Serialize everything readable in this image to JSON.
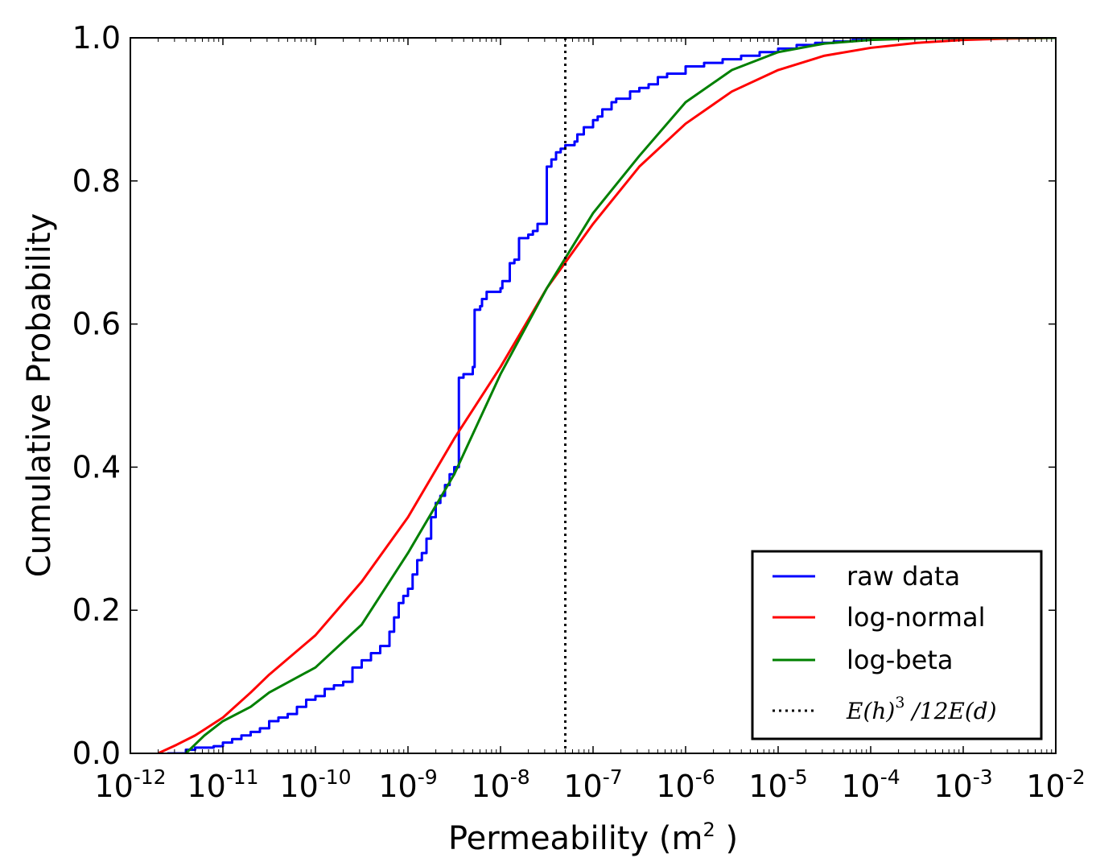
{
  "chart_data": {
    "type": "line",
    "title": "",
    "xlabel": "Permeability (m",
    "xlabel_sup": "2",
    "xlabel_close": " )",
    "ylabel": "Cumulative Probability",
    "xscale": "log",
    "xlim_exp": [
      -12,
      -2
    ],
    "ylim": [
      0.0,
      1.0
    ],
    "x_tick_labels": [
      {
        "base": "10",
        "exp": "-12"
      },
      {
        "base": "10",
        "exp": "-11"
      },
      {
        "base": "10",
        "exp": "-10"
      },
      {
        "base": "10",
        "exp": "-9"
      },
      {
        "base": "10",
        "exp": "-8"
      },
      {
        "base": "10",
        "exp": "-7"
      },
      {
        "base": "10",
        "exp": "-6"
      },
      {
        "base": "10",
        "exp": "-5"
      },
      {
        "base": "10",
        "exp": "-4"
      },
      {
        "base": "10",
        "exp": "-3"
      },
      {
        "base": "10",
        "exp": "-2"
      }
    ],
    "y_ticks": [
      0.0,
      0.2,
      0.4,
      0.6,
      0.8,
      1.0
    ],
    "y_tick_labels": [
      "0.0",
      "0.2",
      "0.4",
      "0.6",
      "0.8",
      "1.0"
    ],
    "legend_position": "lower-right",
    "series": [
      {
        "name": "raw data",
        "color": "#0000ff",
        "style": "step",
        "log10_x": [
          -11.6,
          -11.4,
          -11.3,
          -11.1,
          -11.0,
          -10.9,
          -10.8,
          -10.7,
          -10.6,
          -10.5,
          -10.4,
          -10.3,
          -10.2,
          -10.1,
          -10.0,
          -9.9,
          -9.8,
          -9.7,
          -9.6,
          -9.5,
          -9.4,
          -9.3,
          -9.2,
          -9.15,
          -9.1,
          -9.05,
          -9.0,
          -8.95,
          -8.9,
          -8.85,
          -8.8,
          -8.75,
          -8.7,
          -8.65,
          -8.6,
          -8.55,
          -8.5,
          -8.45,
          -8.4,
          -8.3,
          -8.28,
          -8.22,
          -8.2,
          -8.15,
          -8.0,
          -7.98,
          -7.9,
          -7.85,
          -7.8,
          -7.7,
          -7.65,
          -7.6,
          -7.5,
          -7.45,
          -7.4,
          -7.35,
          -7.3,
          -7.2,
          -7.17,
          -7.1,
          -7.0,
          -6.95,
          -6.9,
          -6.8,
          -6.75,
          -6.6,
          -6.5,
          -6.4,
          -6.3,
          -6.2,
          -6.0,
          -5.8,
          -5.6,
          -5.4,
          -5.2,
          -5.0,
          -4.8,
          -4.6,
          -4.4,
          -4.2,
          -4.0,
          -3.8,
          -3.5,
          -3.0,
          -2.5,
          -2.0
        ],
        "cdf": [
          0.0,
          0.005,
          0.008,
          0.01,
          0.015,
          0.02,
          0.025,
          0.03,
          0.035,
          0.045,
          0.05,
          0.055,
          0.065,
          0.075,
          0.08,
          0.09,
          0.095,
          0.1,
          0.12,
          0.13,
          0.14,
          0.15,
          0.17,
          0.19,
          0.21,
          0.22,
          0.23,
          0.25,
          0.27,
          0.28,
          0.3,
          0.33,
          0.35,
          0.36,
          0.375,
          0.39,
          0.4,
          0.525,
          0.53,
          0.54,
          0.62,
          0.625,
          0.635,
          0.645,
          0.65,
          0.66,
          0.685,
          0.69,
          0.72,
          0.725,
          0.73,
          0.74,
          0.82,
          0.83,
          0.84,
          0.845,
          0.85,
          0.855,
          0.865,
          0.875,
          0.885,
          0.89,
          0.9,
          0.91,
          0.915,
          0.925,
          0.93,
          0.935,
          0.945,
          0.95,
          0.96,
          0.965,
          0.97,
          0.975,
          0.98,
          0.985,
          0.99,
          0.993,
          0.995,
          0.997,
          0.998,
          0.999,
          0.9995,
          1.0,
          1.0,
          1.0
        ]
      },
      {
        "name": "log-normal",
        "color": "#ff0000",
        "style": "line",
        "log10_x": [
          -11.7,
          -11.5,
          -11.3,
          -11.0,
          -10.7,
          -10.5,
          -10.0,
          -9.5,
          -9.0,
          -8.5,
          -8.0,
          -7.5,
          -7.0,
          -6.5,
          -6.0,
          -5.5,
          -5.0,
          -4.5,
          -4.0,
          -3.5,
          -3.0,
          -2.5,
          -2.0
        ],
        "cdf": [
          0.0,
          0.012,
          0.025,
          0.05,
          0.085,
          0.11,
          0.165,
          0.24,
          0.33,
          0.44,
          0.54,
          0.65,
          0.74,
          0.82,
          0.88,
          0.925,
          0.955,
          0.975,
          0.986,
          0.993,
          0.997,
          0.999,
          1.0
        ]
      },
      {
        "name": "log-beta",
        "color": "#008000",
        "style": "line",
        "log10_x": [
          -11.4,
          -11.2,
          -11.0,
          -10.7,
          -10.5,
          -10.0,
          -9.5,
          -9.0,
          -8.5,
          -8.0,
          -7.5,
          -7.0,
          -6.5,
          -6.0,
          -5.5,
          -5.0,
          -4.5,
          -4.0,
          -3.5,
          -3.0,
          -2.5,
          -2.0
        ],
        "cdf": [
          0.0,
          0.025,
          0.045,
          0.065,
          0.085,
          0.12,
          0.18,
          0.28,
          0.39,
          0.53,
          0.65,
          0.755,
          0.835,
          0.91,
          0.955,
          0.98,
          0.992,
          0.997,
          0.999,
          1.0,
          1.0,
          1.0
        ]
      }
    ],
    "vline": {
      "name": "E(h)^3 /12E(d)",
      "log10_x": -7.3,
      "color": "#000000",
      "style": "dotted"
    },
    "legend": {
      "entries": [
        "raw data",
        "log-normal",
        "log-beta"
      ],
      "math_label": {
        "a": "E(h)",
        "sup": "3",
        "b": " /12E(d)"
      }
    }
  }
}
